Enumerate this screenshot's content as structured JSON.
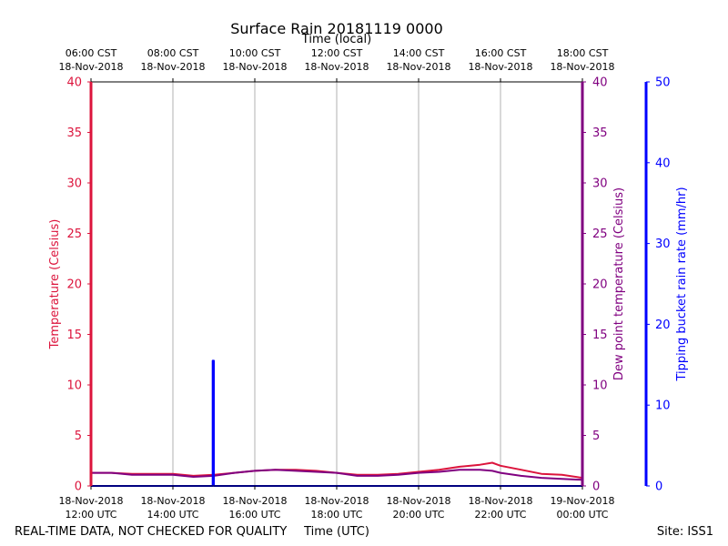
{
  "chart_data": {
    "type": "line",
    "title": "Surface Rain 20181119 0000",
    "top_axis_label": "Time (local)",
    "xlabel": "Time (UTC)",
    "footer_left": "REAL-TIME DATA, NOT CHECKED FOR QUALITY",
    "footer_right": "Site: ISS1",
    "x_range_hours_utc": [
      12,
      24
    ],
    "bottom_ticks": [
      {
        "hour": 12,
        "date": "18-Nov-2018",
        "time": "12:00 UTC"
      },
      {
        "hour": 14,
        "date": "18-Nov-2018",
        "time": "14:00 UTC"
      },
      {
        "hour": 16,
        "date": "18-Nov-2018",
        "time": "16:00 UTC"
      },
      {
        "hour": 18,
        "date": "18-Nov-2018",
        "time": "18:00 UTC"
      },
      {
        "hour": 20,
        "date": "18-Nov-2018",
        "time": "20:00 UTC"
      },
      {
        "hour": 22,
        "date": "18-Nov-2018",
        "time": "22:00 UTC"
      },
      {
        "hour": 24,
        "date": "19-Nov-2018",
        "time": "00:00 UTC"
      }
    ],
    "top_ticks": [
      {
        "hour": 12,
        "time": "06:00 CST",
        "date": "18-Nov-2018"
      },
      {
        "hour": 14,
        "time": "08:00 CST",
        "date": "18-Nov-2018"
      },
      {
        "hour": 16,
        "time": "10:00 CST",
        "date": "18-Nov-2018"
      },
      {
        "hour": 18,
        "time": "12:00 CST",
        "date": "18-Nov-2018"
      },
      {
        "hour": 20,
        "time": "14:00 CST",
        "date": "18-Nov-2018"
      },
      {
        "hour": 22,
        "time": "16:00 CST",
        "date": "18-Nov-2018"
      },
      {
        "hour": 24,
        "time": "18:00 CST",
        "date": "18-Nov-2018"
      }
    ],
    "y_left": {
      "label": "Temperature (Celsius)",
      "range": [
        0,
        40
      ],
      "ticks": [
        "0",
        "5",
        "10",
        "15",
        "20",
        "25",
        "30",
        "35",
        "40"
      ],
      "color": "#dc143c"
    },
    "y_right1": {
      "label": "Dew point temperature (Celsius)",
      "range": [
        0,
        40
      ],
      "ticks": [
        "0",
        "5",
        "10",
        "15",
        "20",
        "25",
        "30",
        "35",
        "40"
      ],
      "color": "#800080"
    },
    "y_right2": {
      "label": "Tipping bucket rain rate (mm/hr)",
      "range": [
        0,
        50
      ],
      "ticks": [
        "0",
        "10",
        "20",
        "30",
        "40",
        "50"
      ],
      "color": "#0000ff"
    },
    "series": [
      {
        "name": "Temperature",
        "color": "#dc143c",
        "x": [
          12,
          12.5,
          13,
          13.5,
          14,
          14.5,
          15,
          15.5,
          16,
          16.5,
          17,
          17.5,
          18,
          18.5,
          19,
          19.5,
          20,
          20.5,
          21,
          21.5,
          21.8,
          22,
          22.5,
          23,
          23.5,
          24
        ],
        "y": [
          1.3,
          1.3,
          1.2,
          1.2,
          1.2,
          1.0,
          1.1,
          1.3,
          1.5,
          1.6,
          1.6,
          1.5,
          1.3,
          1.1,
          1.1,
          1.2,
          1.4,
          1.6,
          1.9,
          2.1,
          2.3,
          2.0,
          1.6,
          1.2,
          1.1,
          0.8
        ]
      },
      {
        "name": "Dew point temperature",
        "color": "#800080",
        "x": [
          12,
          12.5,
          13,
          13.5,
          14,
          14.5,
          15,
          15.5,
          16,
          16.5,
          17,
          17.5,
          18,
          18.5,
          19,
          19.5,
          20,
          20.5,
          21,
          21.5,
          21.8,
          22,
          22.5,
          23,
          23.5,
          24
        ],
        "y": [
          1.3,
          1.3,
          1.1,
          1.1,
          1.1,
          0.9,
          1.0,
          1.3,
          1.5,
          1.6,
          1.5,
          1.4,
          1.3,
          1.0,
          1.0,
          1.1,
          1.3,
          1.4,
          1.6,
          1.6,
          1.5,
          1.3,
          1.0,
          0.8,
          0.7,
          0.6
        ]
      },
      {
        "name": "Tipping bucket rain rate",
        "color": "#0000ff",
        "axis": "right2",
        "x": [
          12,
          14.97,
          14.97,
          15.0,
          15.0,
          15.03,
          15.03,
          24
        ],
        "y": [
          0,
          0,
          15.5,
          15.5,
          0,
          0,
          0,
          0
        ]
      }
    ]
  }
}
